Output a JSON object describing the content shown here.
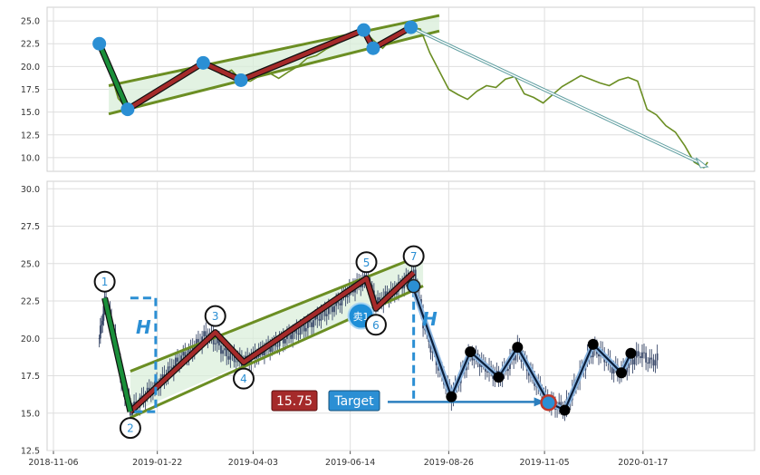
{
  "chart_data": [
    {
      "type": "line",
      "panel": "top",
      "ylim": [
        8.5,
        26.5
      ],
      "yticks": [
        "10.0",
        "12.5",
        "15.0",
        "17.5",
        "20.0",
        "22.5",
        "25.0"
      ],
      "grid": true,
      "price_series": [
        [
          "2018-12-10",
          22.5
        ],
        [
          "2018-12-17",
          20.0
        ],
        [
          "2018-12-24",
          16.5
        ],
        [
          "2018-12-31",
          15.3
        ],
        [
          "2019-01-07",
          15.9
        ],
        [
          "2019-01-14",
          16.8
        ],
        [
          "2019-01-21",
          17.3
        ],
        [
          "2019-01-28",
          18.0
        ],
        [
          "2019-02-04",
          18.6
        ],
        [
          "2019-02-11",
          19.6
        ],
        [
          "2019-02-18",
          19.9
        ],
        [
          "2019-02-25",
          20.4
        ],
        [
          "2019-03-04",
          19.8
        ],
        [
          "2019-03-11",
          19.1
        ],
        [
          "2019-03-18",
          19.6
        ],
        [
          "2019-03-25",
          18.5
        ],
        [
          "2019-04-01",
          18.4
        ],
        [
          "2019-04-08",
          19.0
        ],
        [
          "2019-04-15",
          19.3
        ],
        [
          "2019-04-22",
          18.7
        ],
        [
          "2019-04-29",
          19.4
        ],
        [
          "2019-05-06",
          20.0
        ],
        [
          "2019-05-13",
          20.9
        ],
        [
          "2019-05-20",
          21.2
        ],
        [
          "2019-05-27",
          21.9
        ],
        [
          "2019-06-03",
          22.4
        ],
        [
          "2019-06-10",
          23.0
        ],
        [
          "2019-06-17",
          23.6
        ],
        [
          "2019-06-24",
          23.9
        ],
        [
          "2019-07-01",
          22.9
        ],
        [
          "2019-07-08",
          22.0
        ],
        [
          "2019-07-15",
          23.1
        ],
        [
          "2019-07-22",
          23.8
        ],
        [
          "2019-07-29",
          24.3
        ],
        [
          "2019-08-05",
          24.1
        ],
        [
          "2019-08-12",
          21.5
        ],
        [
          "2019-08-19",
          19.5
        ],
        [
          "2019-08-26",
          17.5
        ],
        [
          "2019-09-02",
          16.9
        ],
        [
          "2019-09-09",
          16.4
        ],
        [
          "2019-09-16",
          17.3
        ],
        [
          "2019-09-23",
          17.9
        ],
        [
          "2019-09-30",
          17.7
        ],
        [
          "2019-10-07",
          18.6
        ],
        [
          "2019-10-14",
          18.9
        ],
        [
          "2019-10-21",
          17.0
        ],
        [
          "2019-10-28",
          16.6
        ],
        [
          "2019-11-04",
          16.0
        ],
        [
          "2019-11-11",
          16.9
        ],
        [
          "2019-11-18",
          17.8
        ],
        [
          "2019-11-25",
          18.4
        ],
        [
          "2019-12-02",
          19.0
        ],
        [
          "2019-12-09",
          18.6
        ],
        [
          "2019-12-16",
          18.2
        ],
        [
          "2019-12-23",
          17.9
        ],
        [
          "2019-12-30",
          18.5
        ],
        [
          "2020-01-06",
          18.8
        ],
        [
          "2020-01-13",
          18.4
        ],
        [
          "2020-01-20",
          15.3
        ],
        [
          "2020-01-27",
          14.7
        ],
        [
          "2020-02-03",
          13.5
        ],
        [
          "2020-02-10",
          12.8
        ],
        [
          "2020-02-17",
          11.3
        ],
        [
          "2020-02-24",
          9.5
        ],
        [
          "2020-03-02",
          8.9
        ],
        [
          "2020-03-05",
          9.5
        ]
      ],
      "zigzag": [
        [
          "2018-12-10",
          22.5
        ],
        [
          "2018-12-31",
          15.3
        ],
        [
          "2019-02-25",
          20.4
        ],
        [
          "2019-03-25",
          18.5
        ],
        [
          "2019-06-24",
          24.0
        ],
        [
          "2019-07-01",
          22.0
        ],
        [
          "2019-07-29",
          24.3
        ]
      ],
      "channel_upper": [
        [
          "2018-12-17",
          17.9
        ],
        [
          "2019-08-19",
          25.6
        ]
      ],
      "channel_lower": [
        [
          "2018-12-17",
          14.8
        ],
        [
          "2019-08-19",
          23.9
        ]
      ],
      "projection_arrow": [
        [
          "2019-07-29",
          24.3
        ],
        [
          "2020-03-05",
          9.0
        ]
      ]
    },
    {
      "type": "candlestick",
      "panel": "bottom",
      "ylim": [
        12.5,
        30.5
      ],
      "yticks": [
        "12.5",
        "15.0",
        "17.5",
        "20.0",
        "22.5",
        "25.0",
        "27.5",
        "30.0"
      ],
      "xticks": [
        {
          "date": "2018-11-06",
          "label": "2018-11-06"
        },
        {
          "date": "2019-01-22",
          "label": "2019-01-22"
        },
        {
          "date": "2019-04-03",
          "label": "2019-04-03"
        },
        {
          "date": "2019-06-14",
          "label": "2019-06-14"
        },
        {
          "date": "2019-08-26",
          "label": "2019-08-26"
        },
        {
          "date": "2019-11-05",
          "label": "2019-11-05"
        },
        {
          "date": "2020-01-17",
          "label": "2020-01-17"
        }
      ],
      "grid": true,
      "price_series": [
        [
          "2018-12-10",
          20.0
        ],
        [
          "2018-12-14",
          22.5
        ],
        [
          "2018-12-19",
          21.0
        ],
        [
          "2018-12-24",
          18.5
        ],
        [
          "2018-12-28",
          16.5
        ],
        [
          "2019-01-02",
          15.2
        ],
        [
          "2019-01-09",
          15.8
        ],
        [
          "2019-01-16",
          16.5
        ],
        [
          "2019-01-23",
          17.0
        ],
        [
          "2019-01-30",
          17.8
        ],
        [
          "2019-02-06",
          18.5
        ],
        [
          "2019-02-13",
          19.0
        ],
        [
          "2019-02-20",
          19.6
        ],
        [
          "2019-02-27",
          20.3
        ],
        [
          "2019-03-06",
          19.8
        ],
        [
          "2019-03-13",
          19.0
        ],
        [
          "2019-03-20",
          18.7
        ],
        [
          "2019-03-27",
          18.4
        ],
        [
          "2019-04-03",
          18.8
        ],
        [
          "2019-04-10",
          19.2
        ],
        [
          "2019-04-17",
          19.5
        ],
        [
          "2019-04-24",
          19.9
        ],
        [
          "2019-05-01",
          20.3
        ],
        [
          "2019-05-08",
          20.6
        ],
        [
          "2019-05-15",
          21.0
        ],
        [
          "2019-05-22",
          21.5
        ],
        [
          "2019-05-29",
          21.9
        ],
        [
          "2019-06-05",
          22.4
        ],
        [
          "2019-06-12",
          23.1
        ],
        [
          "2019-06-19",
          23.6
        ],
        [
          "2019-06-26",
          24.0
        ],
        [
          "2019-07-03",
          22.3
        ],
        [
          "2019-07-10",
          22.8
        ],
        [
          "2019-07-17",
          23.2
        ],
        [
          "2019-07-24",
          23.8
        ],
        [
          "2019-07-31",
          24.3
        ],
        [
          "2019-08-07",
          21.0
        ],
        [
          "2019-08-14",
          19.0
        ],
        [
          "2019-08-21",
          17.5
        ],
        [
          "2019-08-28",
          16.1
        ],
        [
          "2019-09-04",
          17.6
        ],
        [
          "2019-09-11",
          19.0
        ],
        [
          "2019-09-18",
          18.4
        ],
        [
          "2019-09-25",
          17.8
        ],
        [
          "2019-10-02",
          17.4
        ],
        [
          "2019-10-09",
          18.2
        ],
        [
          "2019-10-16",
          19.3
        ],
        [
          "2019-10-23",
          18.0
        ],
        [
          "2019-10-30",
          16.9
        ],
        [
          "2019-11-06",
          15.9
        ],
        [
          "2019-11-13",
          15.5
        ],
        [
          "2019-11-20",
          15.3
        ],
        [
          "2019-11-27",
          16.8
        ],
        [
          "2019-12-04",
          18.2
        ],
        [
          "2019-12-11",
          19.3
        ],
        [
          "2019-12-18",
          18.9
        ],
        [
          "2019-12-25",
          18.0
        ],
        [
          "2020-01-01",
          17.7
        ],
        [
          "2020-01-08",
          18.5
        ],
        [
          "2020-01-15",
          19.0
        ],
        [
          "2020-01-22",
          18.4
        ],
        [
          "2020-01-29",
          18.7
        ]
      ],
      "zigzag": [
        [
          "2018-12-14",
          22.7
        ],
        [
          "2019-01-02",
          15.1
        ],
        [
          "2019-03-06",
          20.4
        ],
        [
          "2019-03-27",
          18.4
        ],
        [
          "2019-06-26",
          24.0
        ],
        [
          "2019-07-03",
          22.0
        ],
        [
          "2019-07-31",
          24.4
        ]
      ],
      "channel_upper": [
        [
          "2019-01-02",
          17.8
        ],
        [
          "2019-08-07",
          25.6
        ]
      ],
      "channel_lower": [
        [
          "2019-01-02",
          14.7
        ],
        [
          "2019-08-07",
          23.5
        ]
      ],
      "channel_fill": [
        [
          "2019-01-02",
          15.0
        ],
        [
          "2019-08-07",
          25.6
        ]
      ],
      "forecast_path": [
        [
          "2019-07-31",
          23.3
        ],
        [
          "2019-08-28",
          16.1
        ],
        [
          "2019-09-11",
          19.1
        ],
        [
          "2019-10-02",
          17.4
        ],
        [
          "2019-10-16",
          19.4
        ],
        [
          "2019-11-08",
          15.7
        ],
        [
          "2019-11-20",
          15.2
        ],
        [
          "2019-12-11",
          19.6
        ],
        [
          "2020-01-01",
          17.7
        ],
        [
          "2020-01-08",
          19.0
        ]
      ],
      "forecast_markers": [
        [
          "2019-08-28",
          16.1
        ],
        [
          "2019-09-11",
          19.1
        ],
        [
          "2019-10-02",
          17.4
        ],
        [
          "2019-10-16",
          19.4
        ],
        [
          "2019-11-20",
          15.2
        ],
        [
          "2019-12-11",
          19.6
        ],
        [
          "2020-01-01",
          17.7
        ],
        [
          "2020-01-08",
          19.0
        ]
      ],
      "pivot_labels": [
        {
          "label": "1",
          "date": "2018-12-14",
          "value": 22.7,
          "pos": "above"
        },
        {
          "label": "2",
          "date": "2019-01-02",
          "value": 15.1,
          "pos": "below"
        },
        {
          "label": "3",
          "date": "2019-03-06",
          "value": 20.4,
          "pos": "above"
        },
        {
          "label": "4",
          "date": "2019-03-27",
          "value": 18.4,
          "pos": "below"
        },
        {
          "label": "5",
          "date": "2019-06-26",
          "value": 24.0,
          "pos": "above"
        },
        {
          "label": "6",
          "date": "2019-07-03",
          "value": 22.0,
          "pos": "below"
        },
        {
          "label": "7",
          "date": "2019-07-31",
          "value": 24.4,
          "pos": "above"
        }
      ],
      "height_label": "H",
      "h_bracket_left": {
        "date": "2019-01-02",
        "from": 22.7,
        "to": 15.1
      },
      "h_bracket_right": {
        "date": "2019-07-31",
        "from": 23.3,
        "to": 15.7
      },
      "sell_marker": {
        "label": "卖1",
        "date": "2019-06-22",
        "value": 21.5
      },
      "price_box": {
        "label": "15.75",
        "color": "#a52a2a"
      },
      "target_box": {
        "label": "Target",
        "color": "#2b8fd4"
      },
      "target_arrow_value": 15.75,
      "target_point": {
        "date": "2019-11-08",
        "value": 15.7
      }
    }
  ],
  "colors": {
    "price_line": "#6b8e23",
    "zigzag_up": "#a52a2a",
    "zigzag_first": "#1a8f3a",
    "channel": "#6b8e23",
    "channel_fill": "#d8eed8",
    "node": "#2b8fd4",
    "h_bracket": "#2b8fd4",
    "forecast": "#0b1e3a",
    "forecast_halo": "#8db6e0",
    "arrow_outline": "#5f9ea0",
    "candle": "#3b4a6b"
  }
}
